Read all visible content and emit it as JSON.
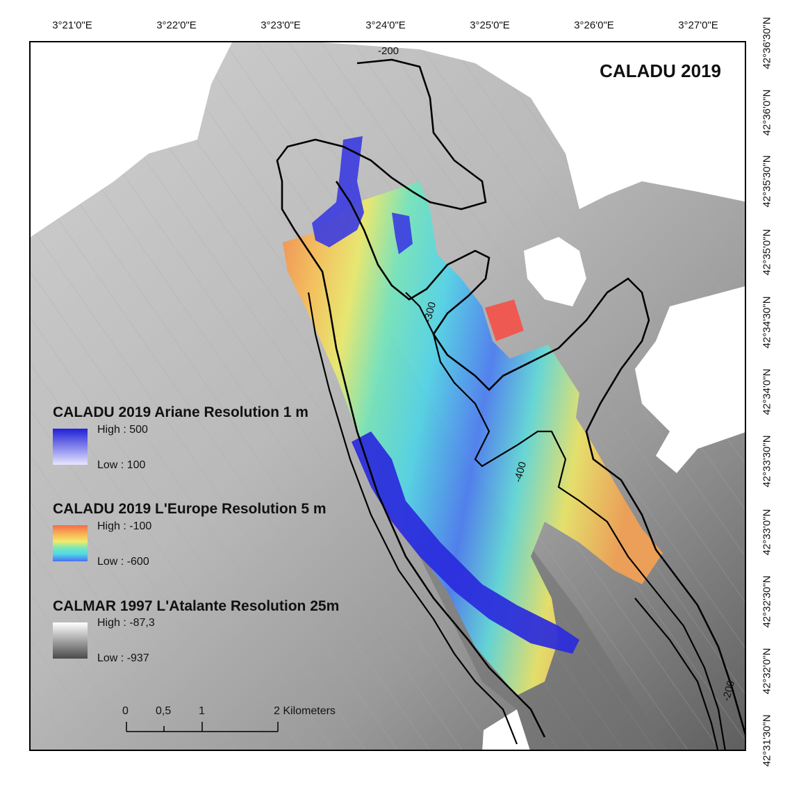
{
  "map": {
    "title": "CALADU 2019",
    "longitude_labels": [
      "3°21'0\"E",
      "3°22'0\"E",
      "3°23'0\"E",
      "3°24'0\"E",
      "3°25'0\"E",
      "3°26'0\"E",
      "3°27'0\"E"
    ],
    "latitude_labels": [
      "42°36'30\"N",
      "42°36'0\"N",
      "42°35'30\"N",
      "42°35'0\"N",
      "42°34'30\"N",
      "42°34'0\"N",
      "42°33'30\"N",
      "42°33'0\"N",
      "42°32'30\"N",
      "42°32'0\"N",
      "42°31'30\"N"
    ],
    "contour_labels": [
      "-200",
      "-300",
      "-400",
      "-200"
    ]
  },
  "legend": {
    "ariane": {
      "title": "CALADU 2019 Ariane Resolution 1 m",
      "high": "High : 500",
      "low": "Low : 100",
      "color_high": "#2020d8",
      "color_low": "#e6e6ff"
    },
    "europe": {
      "title": "CALADU 2019 L'Europe Resolution 5 m",
      "high": "High : -100",
      "low": "Low : -600",
      "ramp": [
        "#f26b4a",
        "#f7b555",
        "#f2ea6a",
        "#7de8b6",
        "#4fd8e8",
        "#4d6ef0"
      ]
    },
    "atalante": {
      "title": "CALMAR 1997 L'Atalante Resolution 25m",
      "high": "High : -87,3",
      "low": "Low : -937",
      "color_high": "#ffffff",
      "color_low": "#4a4a4a"
    }
  },
  "scale_bar": {
    "labels": [
      "0",
      "0,5",
      "1",
      "2 Kilometers"
    ]
  }
}
